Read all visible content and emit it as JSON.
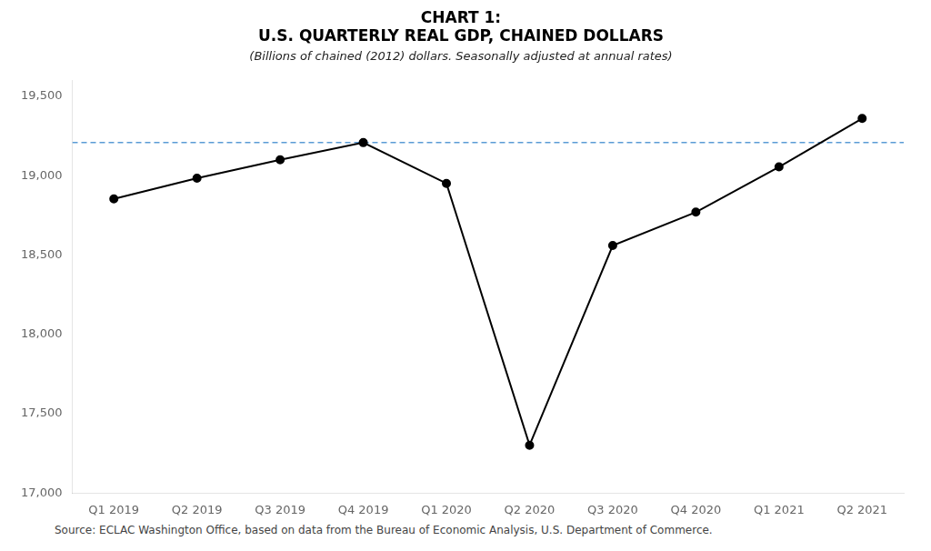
{
  "chart_data": {
    "type": "line",
    "title": [
      "CHART 1:",
      "U.S. QUARTERLY REAL GDP, CHAINED DOLLARS"
    ],
    "subtitle": "(Billions of chained (2012) dollars. Seasonally adjusted at annual rates)",
    "source": "Source: ECLAC Washington Office, based on data from the Bureau of Economic Analysis, U.S. Department of Commerce.",
    "categories": [
      "Q1 2019",
      "Q2 2019",
      "Q3 2019",
      "Q4 2019",
      "Q1 2020",
      "Q2 2020",
      "Q3 2020",
      "Q4 2020",
      "Q1 2021",
      "Q2 2021"
    ],
    "values": [
      18853.0,
      18984.0,
      19100.0,
      19208.0,
      18951.0,
      17302.0,
      18560.0,
      18770.0,
      19055.0,
      19360.0
    ],
    "color": "#000000",
    "marker": "circle",
    "reference_line": {
      "value": 19208.0,
      "color": "#5b9bd5",
      "line_style": "dashed"
    },
    "ylim": [
      17000,
      19600
    ],
    "yticks": [
      {
        "value": 17000,
        "label": "17,000"
      },
      {
        "value": 17500,
        "label": "17,500"
      },
      {
        "value": 18000,
        "label": "18,000"
      },
      {
        "value": 18500,
        "label": "18,500"
      },
      {
        "value": 19000,
        "label": "19,000"
      },
      {
        "value": 19500,
        "label": "19,500"
      }
    ],
    "grid": false
  }
}
